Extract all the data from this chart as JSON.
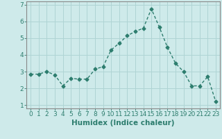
{
  "xlabel": "Humidex (Indice chaleur)",
  "x_values": [
    0,
    1,
    2,
    3,
    4,
    5,
    6,
    7,
    8,
    9,
    10,
    11,
    12,
    13,
    14,
    15,
    16,
    17,
    18,
    19,
    20,
    21,
    22,
    23
  ],
  "y_values": [
    2.85,
    2.85,
    3.0,
    2.8,
    2.15,
    2.6,
    2.55,
    2.55,
    3.15,
    3.3,
    4.3,
    4.7,
    5.15,
    5.4,
    5.6,
    6.75,
    5.65,
    4.45,
    3.5,
    3.0,
    2.15,
    2.15,
    2.7,
    1.2
  ],
  "line_color": "#2d7d6e",
  "marker": "D",
  "marker_size": 2.5,
  "bg_color": "#ceeaea",
  "grid_color": "#afd4d4",
  "ylim": [
    0.8,
    7.2
  ],
  "xlim": [
    -0.5,
    23.5
  ],
  "yticks": [
    1,
    2,
    3,
    4,
    5,
    6,
    7
  ],
  "xticks": [
    0,
    1,
    2,
    3,
    4,
    5,
    6,
    7,
    8,
    9,
    10,
    11,
    12,
    13,
    14,
    15,
    16,
    17,
    18,
    19,
    20,
    21,
    22,
    23
  ],
  "xlabel_fontsize": 7.5,
  "tick_fontsize": 6.5,
  "line_width": 1.0,
  "axis_color": "#2d7d6e",
  "spine_color": "#888888"
}
